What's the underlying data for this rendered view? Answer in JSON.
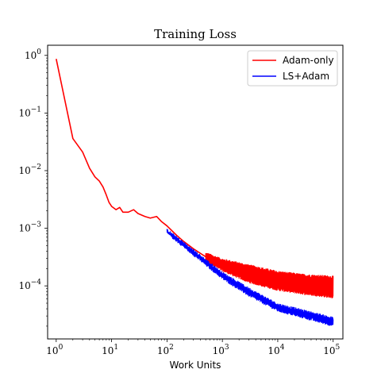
{
  "chart_data": {
    "type": "line",
    "title": "Training Loss",
    "xlabel": "Work Units",
    "ylabel": "",
    "xscale": "log",
    "yscale": "log",
    "xlim": [
      0.7,
      150000
    ],
    "ylim": [
      1.2e-05,
      1.5
    ],
    "grid": false,
    "legend_position": "top-right",
    "x_ticks": [
      {
        "base": "10",
        "exp": "0",
        "value": 1
      },
      {
        "base": "10",
        "exp": "1",
        "value": 10
      },
      {
        "base": "10",
        "exp": "2",
        "value": 100
      },
      {
        "base": "10",
        "exp": "3",
        "value": 1000
      },
      {
        "base": "10",
        "exp": "4",
        "value": 10000
      },
      {
        "base": "10",
        "exp": "5",
        "value": 100000
      }
    ],
    "y_ticks": [
      {
        "base": "10",
        "exp": "0",
        "value": 1
      },
      {
        "base": "10",
        "exp": "−1",
        "value": 0.1
      },
      {
        "base": "10",
        "exp": "−2",
        "value": 0.01
      },
      {
        "base": "10",
        "exp": "−3",
        "value": 0.001
      },
      {
        "base": "10",
        "exp": "−4",
        "value": 0.0001
      }
    ],
    "series": [
      {
        "name": "Adam-only",
        "color": "#ff0000",
        "points": [
          [
            1,
            0.87
          ],
          [
            2,
            0.036
          ],
          [
            3,
            0.021
          ],
          [
            4,
            0.011
          ],
          [
            5,
            0.0078
          ],
          [
            6,
            0.0066
          ],
          [
            7,
            0.0052
          ],
          [
            8,
            0.0038
          ],
          [
            9,
            0.0028
          ],
          [
            10,
            0.0024
          ],
          [
            12,
            0.0021
          ],
          [
            14,
            0.0023
          ],
          [
            16,
            0.0019
          ],
          [
            20,
            0.0019
          ],
          [
            25,
            0.0021
          ],
          [
            30,
            0.0018
          ],
          [
            40,
            0.0016
          ],
          [
            50,
            0.0015
          ],
          [
            65,
            0.0016
          ],
          [
            80,
            0.0013
          ],
          [
            100,
            0.0011
          ],
          [
            150,
            0.00075
          ],
          [
            200,
            0.00059
          ],
          [
            300,
            0.00044
          ],
          [
            500,
            0.00032
          ],
          [
            700,
            0.00026
          ],
          [
            1000,
            0.00022
          ],
          [
            2000,
            0.00017
          ],
          [
            3000,
            0.00015
          ],
          [
            5000,
            0.00013
          ],
          [
            10000,
            0.00011
          ],
          [
            20000,
            0.0001
          ],
          [
            50000,
            9.2e-05
          ],
          [
            100000,
            8.8e-05
          ]
        ],
        "band_upper": [
          [
            500,
            0.00036
          ],
          [
            1000,
            0.00028
          ],
          [
            3000,
            0.00022
          ],
          [
            10000,
            0.00017
          ],
          [
            30000,
            0.00015
          ],
          [
            100000,
            0.00014
          ]
        ],
        "band_lower": [
          [
            500,
            0.00028
          ],
          [
            1000,
            0.00019
          ],
          [
            3000,
            0.00012
          ],
          [
            10000,
            8.8e-05
          ],
          [
            30000,
            7.5e-05
          ],
          [
            100000,
            6.5e-05
          ]
        ]
      },
      {
        "name": "LS+Adam",
        "color": "#0000ff",
        "points": [
          [
            100,
            0.00088
          ],
          [
            150,
            0.00066
          ],
          [
            200,
            0.00052
          ],
          [
            300,
            0.00038
          ],
          [
            500,
            0.00025
          ],
          [
            700,
            0.00019
          ],
          [
            1000,
            0.00015
          ],
          [
            1500,
            0.00012
          ],
          [
            2000,
            0.0001
          ],
          [
            3000,
            7.8e-05
          ],
          [
            5000,
            6e-05
          ],
          [
            7000,
            4.8e-05
          ],
          [
            10000,
            4.2e-05
          ],
          [
            20000,
            3.5e-05
          ],
          [
            50000,
            2.8e-05
          ],
          [
            100000,
            2.4e-05
          ]
        ],
        "band_upper": [
          [
            100,
            0.00092
          ],
          [
            1000,
            0.000165
          ],
          [
            3000,
            8.8e-05
          ],
          [
            10000,
            4.7e-05
          ],
          [
            100000,
            2.7e-05
          ]
        ],
        "band_lower": [
          [
            100,
            0.00084
          ],
          [
            1000,
            0.000138
          ],
          [
            3000,
            7e-05
          ],
          [
            10000,
            3.8e-05
          ],
          [
            100000,
            2.1e-05
          ]
        ]
      }
    ]
  }
}
